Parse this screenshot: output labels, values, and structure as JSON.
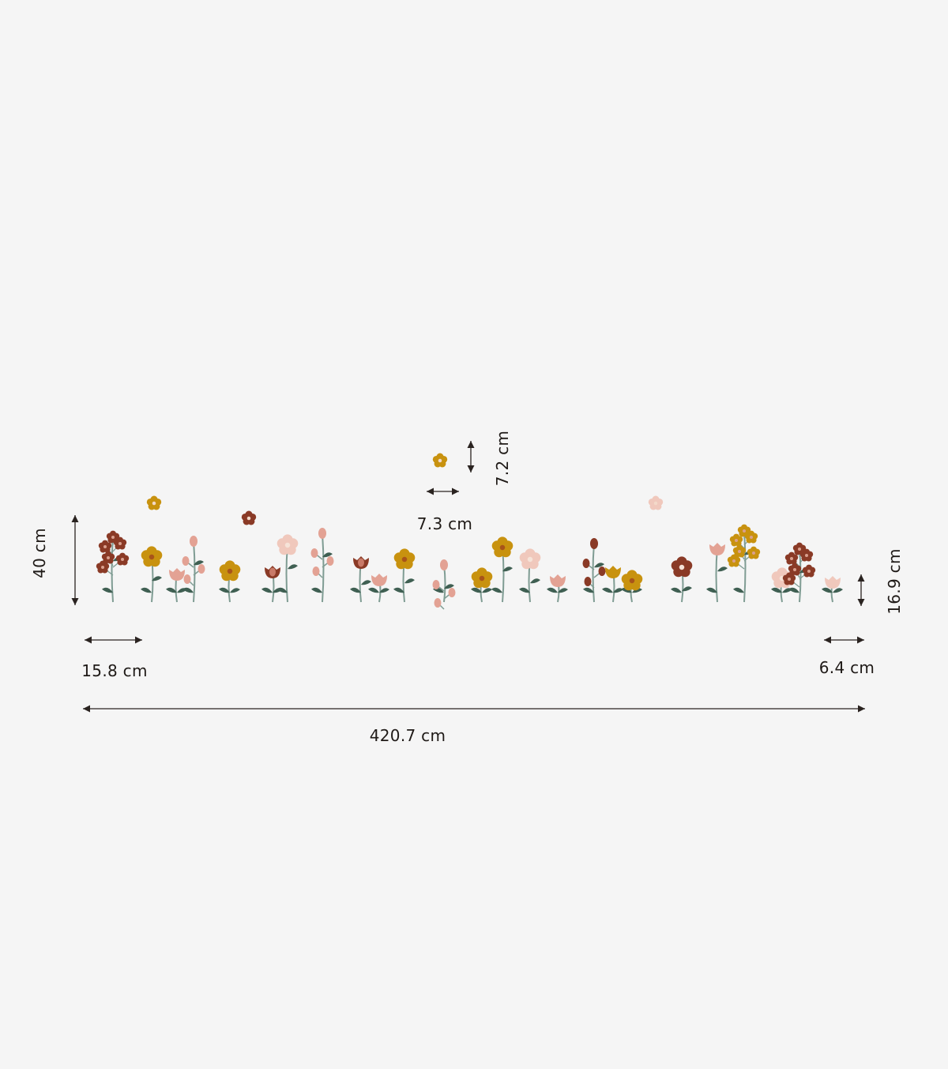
{
  "dimensions": {
    "total_height": "40 cm",
    "first_flower_width": "15.8 cm",
    "last_flower_width": "6.4 cm",
    "last_flower_height": "16.9 cm",
    "total_width": "420.7 cm",
    "small_flower_height": "7.2 cm",
    "small_flower_width": "7.3 cm"
  },
  "colors": {
    "background": "#f5f5f5",
    "arrow": "#2a2320",
    "rust": "#8a3a26",
    "mustard": "#c8920f",
    "pink": "#e3a294",
    "light_pink": "#f0c8bc",
    "stem": "#7f9c93",
    "leaf": "#3f5f52"
  }
}
